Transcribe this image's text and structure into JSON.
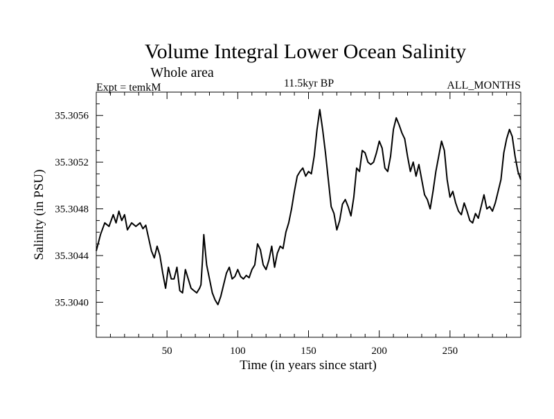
{
  "chart_data": {
    "type": "line",
    "title": "Volume Integral Lower Ocean Salinity",
    "subtitle": "Whole area",
    "annotations": {
      "left": "Expt = temkM",
      "center": "11.5kyr BP",
      "right": "ALL_MONTHS"
    },
    "xlabel": "Time (in years since start)",
    "ylabel": "Salinity (in PSU)",
    "xlim": [
      0,
      300
    ],
    "ylim": [
      35.3037,
      35.3058
    ],
    "x_ticks": [
      50,
      100,
      150,
      200,
      250
    ],
    "x_tick_labels": [
      "50",
      "100",
      "150",
      "200",
      "250"
    ],
    "y_ticks": [
      35.304,
      35.3044,
      35.3048,
      35.3052,
      35.3056
    ],
    "y_tick_labels": [
      "35.3040",
      "35.3044",
      "35.3048",
      "35.3052",
      "35.3056"
    ],
    "grid": false,
    "series": [
      {
        "name": "Salinity",
        "color": "#000000",
        "points": [
          [
            0,
            35.30444
          ],
          [
            3,
            35.30458
          ],
          [
            6,
            35.30468
          ],
          [
            9,
            35.30465
          ],
          [
            12,
            35.30475
          ],
          [
            14,
            35.30468
          ],
          [
            16,
            35.30478
          ],
          [
            18,
            35.3047
          ],
          [
            20,
            35.30475
          ],
          [
            22,
            35.30462
          ],
          [
            25,
            35.30468
          ],
          [
            28,
            35.30465
          ],
          [
            31,
            35.30468
          ],
          [
            33,
            35.30463
          ],
          [
            35,
            35.30466
          ],
          [
            37,
            35.30455
          ],
          [
            39,
            35.30444
          ],
          [
            41,
            35.30438
          ],
          [
            43,
            35.30448
          ],
          [
            45,
            35.3044
          ],
          [
            47,
            35.30425
          ],
          [
            49,
            35.30412
          ],
          [
            51,
            35.3043
          ],
          [
            53,
            35.3042
          ],
          [
            55,
            35.3042
          ],
          [
            57,
            35.3043
          ],
          [
            59,
            35.3041
          ],
          [
            61,
            35.30408
          ],
          [
            63,
            35.30428
          ],
          [
            65,
            35.3042
          ],
          [
            67,
            35.30412
          ],
          [
            69,
            35.3041
          ],
          [
            71,
            35.30408
          ],
          [
            73,
            35.30412
          ],
          [
            74,
            35.30415
          ],
          [
            75,
            35.30435
          ],
          [
            76,
            35.30458
          ],
          [
            77,
            35.30445
          ],
          [
            78,
            35.30432
          ],
          [
            80,
            35.3042
          ],
          [
            82,
            35.30408
          ],
          [
            84,
            35.30402
          ],
          [
            86,
            35.30398
          ],
          [
            88,
            35.30405
          ],
          [
            90,
            35.30415
          ],
          [
            92,
            35.30425
          ],
          [
            94,
            35.3043
          ],
          [
            96,
            35.3042
          ],
          [
            98,
            35.30422
          ],
          [
            100,
            35.30428
          ],
          [
            102,
            35.30422
          ],
          [
            104,
            35.3042
          ],
          [
            106,
            35.30423
          ],
          [
            108,
            35.30421
          ],
          [
            110,
            35.30428
          ],
          [
            112,
            35.30432
          ],
          [
            114,
            35.3045
          ],
          [
            116,
            35.30445
          ],
          [
            118,
            35.30432
          ],
          [
            120,
            35.30428
          ],
          [
            122,
            35.30436
          ],
          [
            124,
            35.30448
          ],
          [
            126,
            35.3043
          ],
          [
            128,
            35.30442
          ],
          [
            130,
            35.30448
          ],
          [
            132,
            35.30446
          ],
          [
            134,
            35.3046
          ],
          [
            136,
            35.30468
          ],
          [
            138,
            35.3048
          ],
          [
            140,
            35.30495
          ],
          [
            142,
            35.30508
          ],
          [
            144,
            35.30512
          ],
          [
            146,
            35.30515
          ],
          [
            148,
            35.30508
          ],
          [
            150,
            35.30512
          ],
          [
            152,
            35.3051
          ],
          [
            154,
            35.30525
          ],
          [
            156,
            35.30548
          ],
          [
            158,
            35.30565
          ],
          [
            160,
            35.30548
          ],
          [
            162,
            35.30528
          ],
          [
            164,
            35.30505
          ],
          [
            166,
            35.30482
          ],
          [
            168,
            35.30476
          ],
          [
            170,
            35.30462
          ],
          [
            172,
            35.3047
          ],
          [
            174,
            35.30484
          ],
          [
            176,
            35.30488
          ],
          [
            178,
            35.30482
          ],
          [
            180,
            35.30474
          ],
          [
            182,
            35.3049
          ],
          [
            184,
            35.30515
          ],
          [
            186,
            35.30512
          ],
          [
            188,
            35.3053
          ],
          [
            190,
            35.30528
          ],
          [
            192,
            35.3052
          ],
          [
            194,
            35.30518
          ],
          [
            196,
            35.3052
          ],
          [
            198,
            35.30528
          ],
          [
            200,
            35.30538
          ],
          [
            202,
            35.30532
          ],
          [
            204,
            35.30515
          ],
          [
            206,
            35.30512
          ],
          [
            208,
            35.30525
          ],
          [
            210,
            35.30548
          ],
          [
            212,
            35.30558
          ],
          [
            214,
            35.30552
          ],
          [
            216,
            35.30545
          ],
          [
            218,
            35.3054
          ],
          [
            220,
            35.30525
          ],
          [
            222,
            35.30512
          ],
          [
            224,
            35.3052
          ],
          [
            226,
            35.30508
          ],
          [
            228,
            35.30518
          ],
          [
            230,
            35.30505
          ],
          [
            232,
            35.30492
          ],
          [
            234,
            35.30488
          ],
          [
            236,
            35.3048
          ],
          [
            238,
            35.30495
          ],
          [
            240,
            35.30512
          ],
          [
            242,
            35.30525
          ],
          [
            244,
            35.30538
          ],
          [
            246,
            35.3053
          ],
          [
            248,
            35.30505
          ],
          [
            250,
            35.3049
          ],
          [
            252,
            35.30495
          ],
          [
            254,
            35.30485
          ],
          [
            256,
            35.30478
          ],
          [
            258,
            35.30475
          ],
          [
            260,
            35.30485
          ],
          [
            262,
            35.30478
          ],
          [
            264,
            35.3047
          ],
          [
            266,
            35.30468
          ],
          [
            268,
            35.30476
          ],
          [
            270,
            35.30472
          ],
          [
            272,
            35.30482
          ],
          [
            274,
            35.30492
          ],
          [
            276,
            35.3048
          ],
          [
            278,
            35.30482
          ],
          [
            280,
            35.30478
          ],
          [
            282,
            35.30485
          ],
          [
            284,
            35.30495
          ],
          [
            286,
            35.30505
          ],
          [
            288,
            35.30528
          ],
          [
            290,
            35.3054
          ],
          [
            292,
            35.30548
          ],
          [
            294,
            35.30542
          ],
          [
            296,
            35.30525
          ],
          [
            298,
            35.30512
          ],
          [
            300,
            35.30505
          ]
        ]
      }
    ]
  }
}
